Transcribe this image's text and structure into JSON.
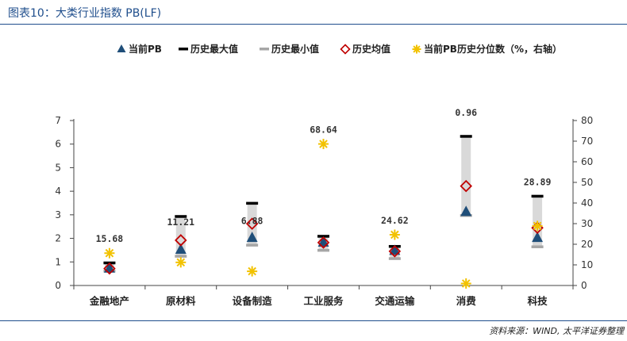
{
  "header": {
    "title": "图表10：大类行业指数 PB(LF)"
  },
  "footer": {
    "source": "资料来源：WIND, 太平洋证券整理"
  },
  "colors": {
    "current_pb": "#1f4e79",
    "hist_max": "#000000",
    "hist_min": "#a6a6a6",
    "hist_mean": "#c00000",
    "percentile": "#f2c200",
    "range_bar": "#d9d9d9",
    "title": "#1f4e8c"
  },
  "chart_data": {
    "type": "range-marker",
    "legend_position": "top",
    "legend": [
      {
        "key": "current_pb",
        "label": "当前PB",
        "marker": "triangle"
      },
      {
        "key": "hist_max",
        "label": "历史最大值",
        "marker": "dash-black"
      },
      {
        "key": "hist_min",
        "label": "历史最小值",
        "marker": "dash-gray"
      },
      {
        "key": "hist_mean",
        "label": "历史均值",
        "marker": "diamond"
      },
      {
        "key": "percentile",
        "label": "当前PB历史分位数（%，右轴）",
        "marker": "asterisk"
      }
    ],
    "categories": [
      "金融地产",
      "原材料",
      "设备制造",
      "工业服务",
      "交通运输",
      "消费",
      "科技"
    ],
    "series": {
      "current_pb": [
        0.75,
        1.55,
        2.05,
        1.85,
        1.5,
        3.15,
        2.05
      ],
      "hist_max": [
        0.95,
        2.92,
        3.48,
        2.08,
        1.65,
        6.32,
        3.78
      ],
      "hist_min": [
        0.62,
        1.25,
        1.72,
        1.5,
        1.15,
        2.98,
        1.65
      ],
      "hist_mean": [
        0.72,
        1.92,
        2.62,
        1.82,
        1.45,
        4.22,
        2.45
      ],
      "percentile": [
        15.68,
        11.21,
        6.88,
        68.64,
        24.62,
        0.96,
        28.89
      ]
    },
    "percentile_labels": [
      "15.68",
      "11.21",
      "6.88",
      "68.64",
      "24.62",
      "0.96",
      "28.89"
    ],
    "y_left": {
      "min": 0,
      "max": 7,
      "ticks": [
        "0",
        "1",
        "2",
        "3",
        "4",
        "5",
        "6",
        "7"
      ]
    },
    "y_right": {
      "min": 0,
      "max": 80,
      "ticks": [
        "0",
        "10",
        "20",
        "30",
        "40",
        "50",
        "60",
        "70",
        "80"
      ]
    },
    "grid": false
  }
}
